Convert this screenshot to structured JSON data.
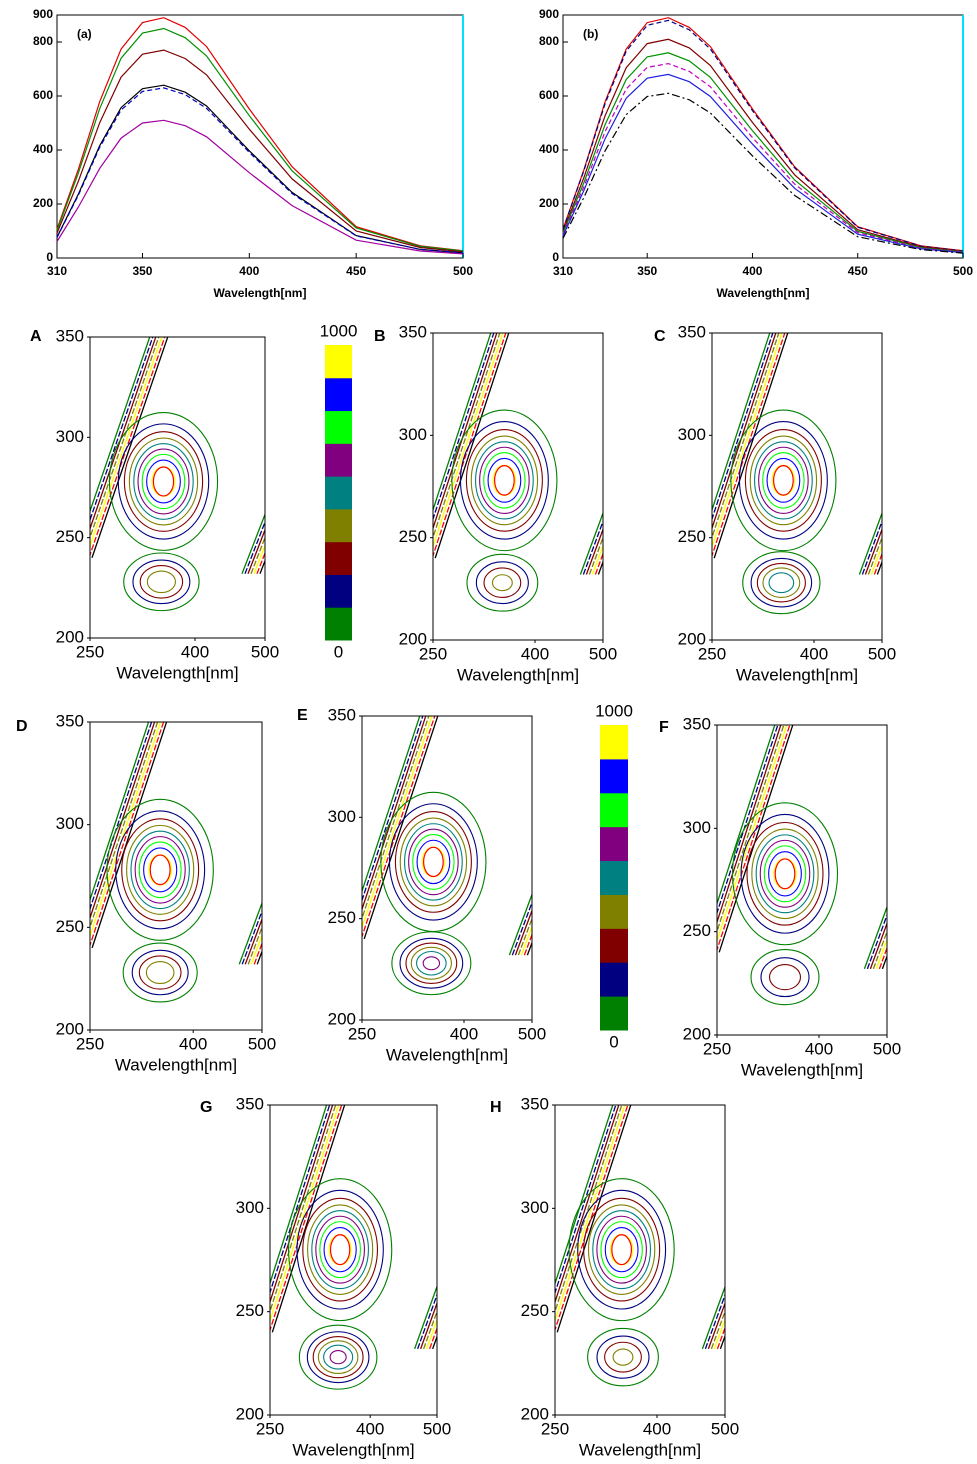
{
  "chart_data": [
    {
      "type": "line",
      "label": "(a)",
      "xlabel": "Wavelength[nm]",
      "x": [
        310,
        320,
        330,
        340,
        350,
        360,
        370,
        380,
        400,
        420,
        450,
        480,
        500
      ],
      "xlim": [
        310,
        500
      ],
      "ylim": [
        0,
        900
      ],
      "xticks": [
        310,
        350,
        400,
        450,
        500
      ],
      "yticks": [
        0,
        200,
        400,
        600,
        800,
        900
      ],
      "series": [
        {
          "color": "#e00000",
          "dash": "solid",
          "values": [
            107,
            329,
            579,
            774,
            872,
            890,
            854,
            783,
            552,
            338,
            116,
            45,
            27
          ]
        },
        {
          "color": "#009000",
          "dash": "solid",
          "values": [
            102,
            315,
            553,
            740,
            833,
            850,
            816,
            748,
            527,
            323,
            111,
            43,
            26
          ]
        },
        {
          "color": "#800000",
          "dash": "solid",
          "values": [
            92,
            285,
            501,
            670,
            755,
            770,
            739,
            678,
            477,
            293,
            100,
            39,
            23
          ]
        },
        {
          "color": "#000000",
          "dash": "solid",
          "values": [
            77,
            237,
            416,
            557,
            627,
            640,
            614,
            563,
            397,
            243,
            83,
            32,
            19
          ]
        },
        {
          "color": "#0000c0",
          "dash": "dashed",
          "values": [
            76,
            233,
            410,
            548,
            617,
            630,
            605,
            554,
            391,
            239,
            82,
            32,
            19
          ]
        },
        {
          "color": "#a000a0",
          "dash": "solid",
          "values": [
            61,
            189,
            332,
            444,
            500,
            510,
            490,
            449,
            316,
            194,
            66,
            26,
            15
          ]
        }
      ]
    },
    {
      "type": "line",
      "label": "(b)",
      "xlabel": "Wavelength[nm]",
      "x": [
        310,
        320,
        330,
        340,
        350,
        360,
        370,
        380,
        400,
        420,
        450,
        480,
        500
      ],
      "xlim": [
        310,
        500
      ],
      "ylim": [
        0,
        900
      ],
      "xticks": [
        310,
        350,
        400,
        450,
        500
      ],
      "yticks": [
        0,
        200,
        400,
        600,
        800,
        900
      ],
      "series": [
        {
          "color": "#e00000",
          "dash": "solid",
          "values": [
            107,
            329,
            579,
            774,
            872,
            890,
            854,
            783,
            552,
            338,
            116,
            45,
            27
          ]
        },
        {
          "color": "#000080",
          "dash": "dashed",
          "values": [
            106,
            326,
            572,
            766,
            862,
            880,
            845,
            774,
            546,
            334,
            114,
            44,
            26
          ]
        },
        {
          "color": "#800000",
          "dash": "solid",
          "values": [
            97,
            300,
            527,
            705,
            794,
            810,
            778,
            713,
            502,
            308,
            105,
            41,
            24
          ]
        },
        {
          "color": "#009000",
          "dash": "solid",
          "values": [
            91,
            281,
            494,
            661,
            745,
            760,
            730,
            669,
            471,
            289,
            99,
            38,
            23
          ]
        },
        {
          "color": "#c000c0",
          "dash": "dashed",
          "values": [
            86,
            266,
            468,
            626,
            706,
            720,
            691,
            634,
            446,
            274,
            94,
            36,
            22
          ]
        },
        {
          "color": "#2020e0",
          "dash": "solid",
          "values": [
            82,
            252,
            442,
            592,
            666,
            680,
            653,
            598,
            422,
            258,
            88,
            34,
            20
          ]
        },
        {
          "color": "#000000",
          "dash": "dashdot",
          "values": [
            73,
            226,
            397,
            531,
            598,
            610,
            586,
            537,
            378,
            232,
            79,
            31,
            18
          ]
        }
      ]
    },
    {
      "type": "contour",
      "label": "A",
      "xlabel": "Wavelength[nm]",
      "xlim": [
        250,
        500
      ],
      "ylim": [
        200,
        350
      ],
      "xticks": [
        250,
        400,
        500
      ],
      "yticks": [
        200,
        250,
        300,
        350
      ],
      "levels": [
        100,
        200,
        300,
        400,
        500,
        600,
        700,
        800,
        900
      ],
      "peaks": [
        {
          "x": 355,
          "y": 278,
          "z": 1000
        },
        {
          "x": 352,
          "y": 228,
          "z": 500
        }
      ]
    },
    {
      "type": "colorbar",
      "zticks": [
        0,
        1000
      ],
      "colors": [
        "#008000",
        "#000080",
        "#800000",
        "#808000",
        "#008080",
        "#800080",
        "#00ff00",
        "#0000ff",
        "#ffff00"
      ]
    },
    {
      "type": "contour",
      "label": "B",
      "xlabel": "Wavelength[nm]",
      "xlim": [
        250,
        500
      ],
      "ylim": [
        200,
        350
      ],
      "xticks": [
        250,
        400,
        500
      ],
      "yticks": [
        200,
        250,
        300,
        350
      ],
      "levels": [
        100,
        200,
        300,
        400,
        500,
        600,
        700,
        800,
        900
      ],
      "peaks": [
        {
          "x": 355,
          "y": 278,
          "z": 1000
        },
        {
          "x": 352,
          "y": 228,
          "z": 450
        }
      ]
    },
    {
      "type": "contour",
      "label": "C",
      "xlabel": "Wavelength[nm]",
      "xlim": [
        250,
        500
      ],
      "ylim": [
        200,
        350
      ],
      "xticks": [
        250,
        400,
        500
      ],
      "yticks": [
        200,
        250,
        300,
        350
      ],
      "levels": [
        100,
        200,
        300,
        400,
        500,
        600,
        700,
        800,
        900
      ],
      "peaks": [
        {
          "x": 355,
          "y": 278,
          "z": 1000
        },
        {
          "x": 352,
          "y": 228,
          "z": 600
        }
      ]
    },
    {
      "type": "contour",
      "label": "D",
      "xlabel": "Wavelength[nm]",
      "xlim": [
        250,
        500
      ],
      "ylim": [
        200,
        350
      ],
      "xticks": [
        250,
        400,
        500
      ],
      "yticks": [
        200,
        250,
        300,
        350
      ],
      "levels": [
        100,
        200,
        300,
        400,
        500,
        600,
        700,
        800,
        900
      ],
      "peaks": [
        {
          "x": 352,
          "y": 278,
          "z": 1000
        },
        {
          "x": 352,
          "y": 228,
          "z": 500
        }
      ]
    },
    {
      "type": "contour",
      "label": "E",
      "xlabel": "Wavelength[nm]",
      "xlim": [
        250,
        500
      ],
      "ylim": [
        200,
        350
      ],
      "xticks": [
        250,
        400,
        500
      ],
      "yticks": [
        200,
        250,
        300,
        350
      ],
      "levels": [
        100,
        200,
        300,
        400,
        500,
        600,
        700,
        800,
        900
      ],
      "peaks": [
        {
          "x": 355,
          "y": 278,
          "z": 1000
        },
        {
          "x": 352,
          "y": 228,
          "z": 650
        }
      ]
    },
    {
      "type": "colorbar",
      "zticks": [
        0,
        1000
      ],
      "colors": [
        "#008000",
        "#000080",
        "#800000",
        "#808000",
        "#008080",
        "#800080",
        "#00ff00",
        "#0000ff",
        "#ffff00"
      ]
    },
    {
      "type": "contour",
      "label": "F",
      "xlabel": "Wavelength[nm]",
      "xlim": [
        250,
        500
      ],
      "ylim": [
        200,
        350
      ],
      "xticks": [
        250,
        400,
        500
      ],
      "yticks": [
        200,
        250,
        300,
        350
      ],
      "levels": [
        100,
        200,
        300,
        400,
        500,
        600,
        700,
        800,
        900
      ],
      "peaks": [
        {
          "x": 350,
          "y": 278,
          "z": 1000
        },
        {
          "x": 350,
          "y": 228,
          "z": 400
        }
      ]
    },
    {
      "type": "contour",
      "label": "G",
      "xlabel": "Wavelength[nm]",
      "xlim": [
        250,
        500
      ],
      "ylim": [
        200,
        350
      ],
      "xticks": [
        250,
        400,
        500
      ],
      "yticks": [
        200,
        250,
        300,
        350
      ],
      "levels": [
        100,
        200,
        300,
        400,
        500,
        600,
        700,
        800,
        900
      ],
      "peaks": [
        {
          "x": 355,
          "y": 280,
          "z": 1000
        },
        {
          "x": 352,
          "y": 228,
          "z": 650
        }
      ]
    },
    {
      "type": "contour",
      "label": "H",
      "xlabel": "Wavelength[nm]",
      "xlim": [
        250,
        500
      ],
      "ylim": [
        200,
        350
      ],
      "xticks": [
        250,
        400,
        500
      ],
      "yticks": [
        200,
        250,
        300,
        350
      ],
      "levels": [
        100,
        200,
        300,
        400,
        500,
        600,
        700,
        800,
        900
      ],
      "peaks": [
        {
          "x": 348,
          "y": 280,
          "z": 1000
        },
        {
          "x": 350,
          "y": 228,
          "z": 450
        }
      ]
    }
  ]
}
